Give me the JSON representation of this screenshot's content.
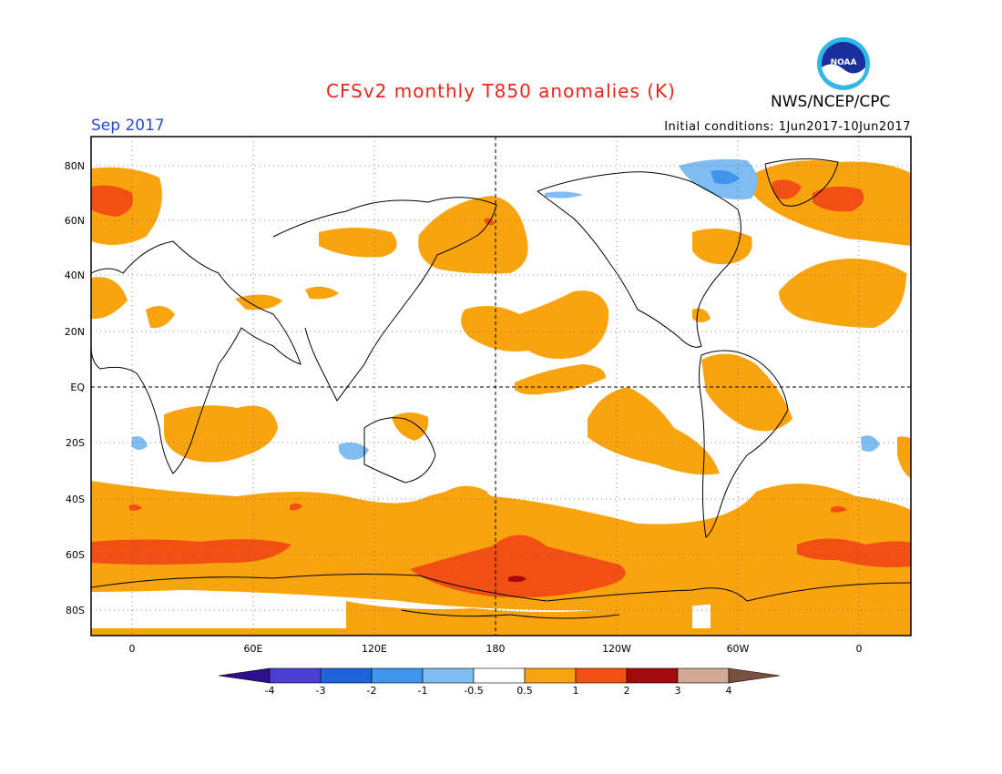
{
  "title": "CFSv2 monthly T850 anomalies (K)",
  "agency": "NWS/NCEP/CPC",
  "logo_text": "NOAA",
  "valid_month": "Sep 2017",
  "initial_conditions": "Initial conditions: 1Jun2017-10Jun2017",
  "lat_labels": [
    "80N",
    "60N",
    "40N",
    "20N",
    "EQ",
    "20S",
    "40S",
    "60S",
    "80S"
  ],
  "lon_labels": [
    "0",
    "60E",
    "120E",
    "180",
    "120W",
    "60W",
    "0"
  ],
  "colorbar": {
    "labels": [
      "-4",
      "-3",
      "-2",
      "-1",
      "-0.5",
      "0.5",
      "1",
      "2",
      "3",
      "4"
    ],
    "colors": [
      "#2e0f8c",
      "#4a3fd0",
      "#1f64d8",
      "#3f95ec",
      "#7fbcf2",
      "#ffffff",
      "#f9a30f",
      "#f24f14",
      "#a10b0b",
      "#d2a897",
      "#7a5040"
    ]
  },
  "colors": {
    "title": "#e8261d",
    "month": "#2a48d8",
    "warm1": "#f9a30f",
    "warm2": "#f24f14",
    "warm3": "#a10b0b",
    "cool1": "#7fbcf2",
    "cool2": "#3f95ec"
  }
}
